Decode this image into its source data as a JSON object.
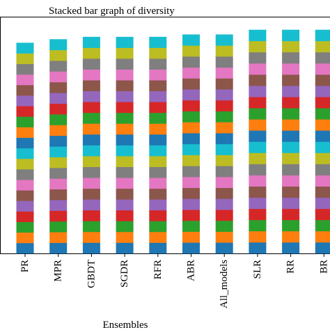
{
  "chart_data": {
    "type": "bar",
    "stacked": true,
    "title": "Stacked bar graph of diversity",
    "xlabel": "Ensembles",
    "ylabel": "",
    "categories": [
      "PR",
      "MPR",
      "GBDT",
      "SGDR",
      "RFR",
      "ABR",
      "All_models",
      "SLR",
      "RR",
      "BR"
    ],
    "segment_colors": [
      "#1f77b4",
      "#ff7f0e",
      "#2ca02c",
      "#d62728",
      "#9467bd",
      "#8c564b",
      "#e377c2",
      "#7f7f7f",
      "#bcbd22",
      "#17becf"
    ],
    "segments_per_bar": 20,
    "totals": [
      0.89,
      0.905,
      0.915,
      0.915,
      0.915,
      0.925,
      0.925,
      0.945,
      0.945,
      0.945
    ],
    "ylim": [
      0,
      1.0
    ],
    "grid": false,
    "legend": "none"
  }
}
